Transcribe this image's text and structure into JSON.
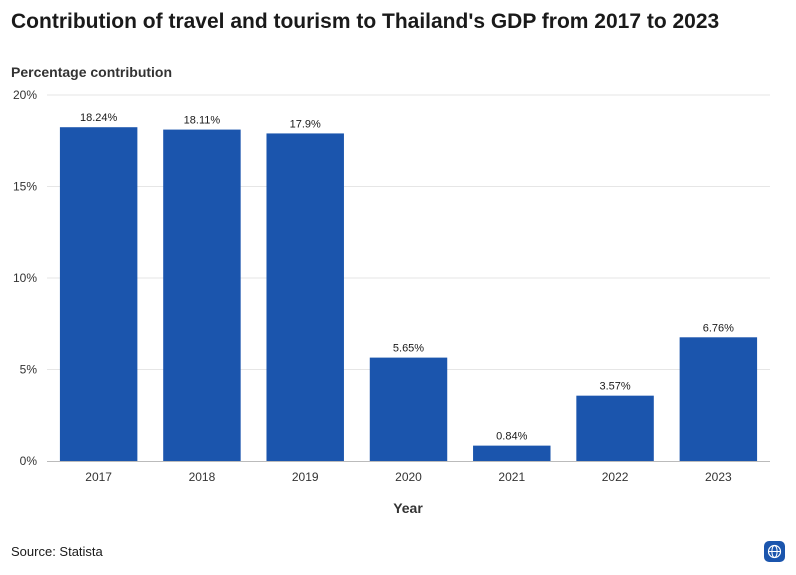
{
  "title": "Contribution of travel and tourism to Thailand's GDP from 2017 to 2023",
  "source": "Source: Statista",
  "colors": {
    "bar": "#1b55ad",
    "grid": "#e6e6e6",
    "axis": "#bbbbbb"
  },
  "icons": {
    "brand": "globe-icon"
  },
  "chart_data": {
    "type": "bar",
    "title": "Contribution of travel and tourism to Thailand's GDP from 2017 to 2023",
    "xlabel": "Year",
    "ylabel": "Percentage contribution",
    "categories": [
      "2017",
      "2018",
      "2019",
      "2020",
      "2021",
      "2022",
      "2023"
    ],
    "values": [
      18.24,
      18.11,
      17.9,
      5.65,
      0.84,
      3.57,
      6.76
    ],
    "value_labels": [
      "18.24%",
      "18.11%",
      "17.9%",
      "5.65%",
      "0.84%",
      "3.57%",
      "6.76%"
    ],
    "yticks": [
      0,
      5,
      10,
      15,
      20
    ],
    "ytick_labels": [
      "0%",
      "5%",
      "10%",
      "15%",
      "20%"
    ],
    "ylim": [
      0,
      20
    ],
    "grid": true,
    "legend": "none"
  }
}
